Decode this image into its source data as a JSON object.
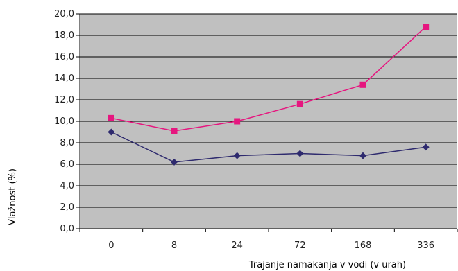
{
  "chart_data": {
    "type": "line",
    "categories": [
      "0",
      "8",
      "24",
      "72",
      "168",
      "336"
    ],
    "series": [
      {
        "values": [
          9.0,
          6.2,
          6.8,
          7.0,
          6.8,
          7.6
        ],
        "color": "#2e2a6e",
        "marker": "diamond"
      },
      {
        "values": [
          10.3,
          9.1,
          10.0,
          11.6,
          13.4,
          18.8
        ],
        "color": "#e6167f",
        "marker": "square"
      }
    ],
    "xlabel": "Trajanje namakanja v vodi (v urah)",
    "ylabel": "Vlažnost (%)",
    "ylim": [
      0,
      20
    ],
    "ytick_labels": [
      "0,0",
      "2,0",
      "4,0",
      "6,0",
      "8,0",
      "10,0",
      "12,0",
      "14,0",
      "16,0",
      "18,0",
      "20,0"
    ],
    "grid": true,
    "legend": "none",
    "plot_background": "#c0c0c0"
  }
}
